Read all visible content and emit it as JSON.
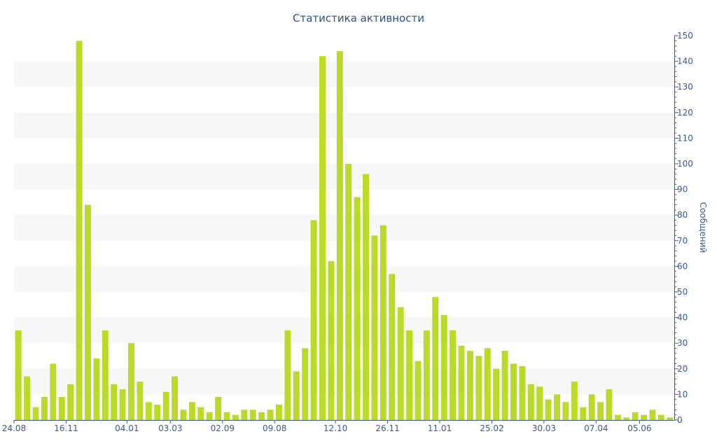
{
  "chart_data": {
    "type": "bar",
    "title": "Статистика активности",
    "ylabel": "Сообщений",
    "xlabel": "",
    "y_axis_position": "right",
    "ylim": [
      0,
      150
    ],
    "y_ticks": [
      0,
      10,
      20,
      30,
      40,
      50,
      60,
      70,
      80,
      90,
      100,
      110,
      120,
      130,
      140,
      150
    ],
    "grid": "alternating horizontal bands",
    "bar_color": "#bada2a",
    "band_color": "#f7f7f7",
    "axis_color": "#3a5a95",
    "x_tick_labels": [
      {
        "label": "24.08",
        "index": 0
      },
      {
        "label": "16.11",
        "index": 6
      },
      {
        "label": "04.01",
        "index": 13
      },
      {
        "label": "03.03",
        "index": 18
      },
      {
        "label": "02.09",
        "index": 24
      },
      {
        "label": "09.08",
        "index": 30
      },
      {
        "label": "12.10",
        "index": 37
      },
      {
        "label": "26.11",
        "index": 43
      },
      {
        "label": "11.01",
        "index": 49
      },
      {
        "label": "25.02",
        "index": 55
      },
      {
        "label": "30.03",
        "index": 61
      },
      {
        "label": "07.04",
        "index": 67
      },
      {
        "label": "05.06",
        "index": 72
      }
    ],
    "values": [
      35,
      17,
      5,
      9,
      22,
      9,
      14,
      148,
      84,
      24,
      35,
      14,
      12,
      30,
      15,
      7,
      6,
      11,
      17,
      4,
      7,
      5,
      3,
      9,
      3,
      2,
      4,
      4,
      3,
      4,
      6,
      35,
      19,
      28,
      78,
      142,
      62,
      144,
      100,
      87,
      96,
      72,
      76,
      57,
      44,
      35,
      23,
      35,
      48,
      41,
      35,
      29,
      27,
      25,
      28,
      20,
      27,
      22,
      21,
      14,
      13,
      8,
      10,
      7,
      15,
      5,
      10,
      7,
      12,
      2,
      1,
      3,
      2,
      4,
      2,
      1
    ]
  }
}
